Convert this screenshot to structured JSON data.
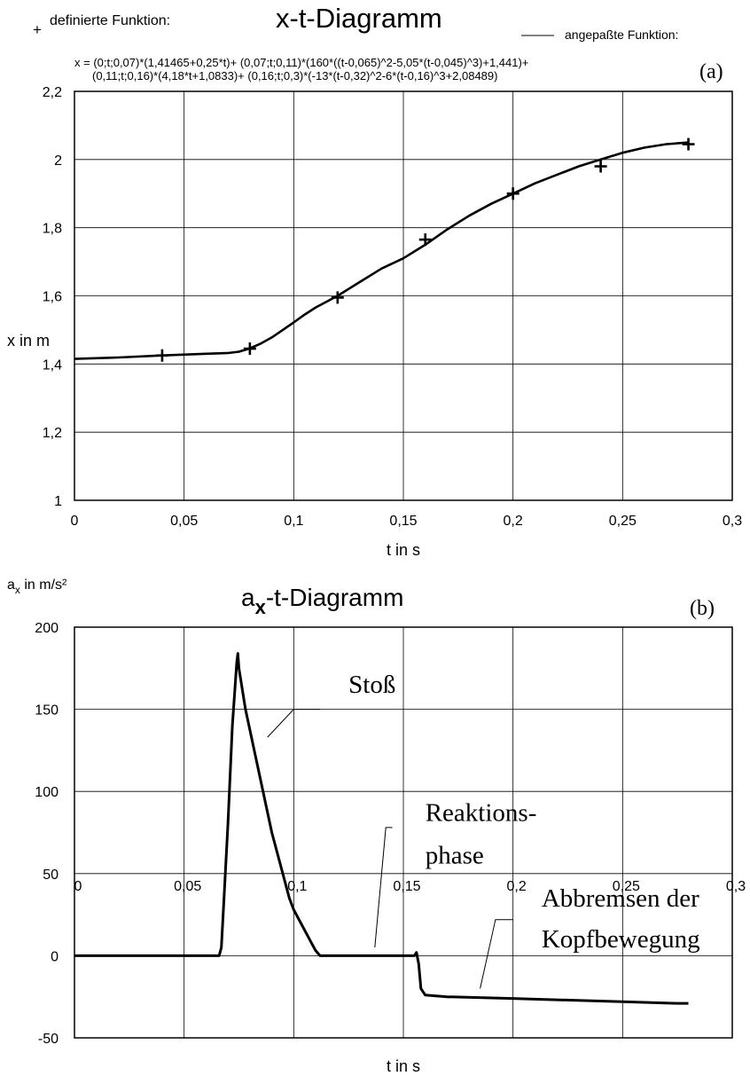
{
  "chart_data": [
    {
      "type": "line",
      "title": "x-t-Diagramm",
      "panel_label": "(a)",
      "legend": {
        "markers_label": "definierte Funktion:",
        "line_label": "angepaßte Funktion:",
        "marker_symbol": "+"
      },
      "formula_line1": "x = (0;t;0,07)*(1,41465+0,25*t)+ (0,07;t;0,11)*(160*((t-0,065)^2-5,05*(t-0,045)^3)+1,441)+",
      "formula_line2": "(0,11;t;0,16)*(4,18*t+1,0833)+ (0,16;t;0,3)*(-13*(t-0,32)^2-6*(t-0,16)^3+2,08489)",
      "xlabel": "t in s",
      "ylabel": "x in m",
      "xlim": [
        0,
        0.3
      ],
      "ylim": [
        1,
        2.2
      ],
      "x_ticks": [
        0,
        0.05,
        0.1,
        0.15,
        0.2,
        0.25,
        0.3
      ],
      "x_tick_labels": [
        "0",
        "0,05",
        "0,1",
        "0,15",
        "0,2",
        "0,25",
        "0,3"
      ],
      "y_ticks": [
        1,
        1.2,
        1.4,
        1.6,
        1.8,
        2,
        2.2
      ],
      "y_tick_labels": [
        "1",
        "1,2",
        "1,4",
        "1,6",
        "1,8",
        "2",
        "2,2"
      ],
      "grid": true,
      "series": [
        {
          "kind": "markers",
          "x": [
            0.04,
            0.08,
            0.12,
            0.16,
            0.2,
            0.24,
            0.28
          ],
          "y": [
            1.425,
            1.445,
            1.595,
            1.765,
            1.9,
            1.98,
            2.045
          ]
        },
        {
          "kind": "line",
          "x": [
            0,
            0.02,
            0.04,
            0.06,
            0.07,
            0.075,
            0.08,
            0.085,
            0.09,
            0.095,
            0.1,
            0.105,
            0.11,
            0.12,
            0.13,
            0.14,
            0.15,
            0.16,
            0.17,
            0.18,
            0.19,
            0.2,
            0.21,
            0.22,
            0.23,
            0.24,
            0.25,
            0.26,
            0.27,
            0.28
          ],
          "y": [
            1.415,
            1.419,
            1.425,
            1.43,
            1.432,
            1.436,
            1.446,
            1.46,
            1.478,
            1.5,
            1.522,
            1.545,
            1.566,
            1.6,
            1.64,
            1.68,
            1.71,
            1.75,
            1.795,
            1.835,
            1.87,
            1.9,
            1.93,
            1.955,
            1.98,
            2.0,
            2.02,
            2.035,
            2.045,
            2.05
          ]
        }
      ]
    },
    {
      "type": "line",
      "title_main": "a",
      "title_sub": "x",
      "title_rest": "-t-Diagramm",
      "panel_label": "(b)",
      "xlabel": "t in s",
      "ylabel_main": "a",
      "ylabel_sub": "x",
      "ylabel_rest": " in m/s²",
      "xlim": [
        0,
        0.3
      ],
      "ylim": [
        -50,
        200
      ],
      "x_ticks": [
        0,
        0.05,
        0.1,
        0.15,
        0.2,
        0.25,
        0.3
      ],
      "x_tick_labels": [
        "0",
        "0,05",
        "0,1",
        "0,15",
        "0,2",
        "0,25",
        "0,3"
      ],
      "y_ticks": [
        -50,
        0,
        50,
        100,
        150,
        200
      ],
      "y_tick_labels": [
        "-50",
        "0",
        "50",
        "100",
        "150",
        "200"
      ],
      "grid": true,
      "annotations": [
        {
          "text": "Stoß",
          "x": 0.125,
          "y": 160,
          "leader_from": [
            0.088,
            133
          ],
          "leader_to": [
            0.1,
            150
          ],
          "leader_end": [
            0.112,
            150
          ]
        },
        {
          "text": "Reaktions-",
          "x": 0.16,
          "y": 82,
          "leader_from": [
            0.137,
            5
          ],
          "leader_to": [
            0.142,
            78
          ],
          "leader_end": [
            0.145,
            78
          ]
        },
        {
          "text": "phase",
          "x": 0.16,
          "y": 56
        },
        {
          "text": "Abbremsen der",
          "x": 0.213,
          "y": 30,
          "leader_from": [
            0.185,
            -20
          ],
          "leader_to": [
            0.192,
            22
          ],
          "leader_end": [
            0.2,
            22
          ]
        },
        {
          "text": "Kopfbewegung",
          "x": 0.213,
          "y": 5
        }
      ],
      "series": [
        {
          "kind": "line",
          "x": [
            0,
            0.066,
            0.067,
            0.068,
            0.07,
            0.072,
            0.074,
            0.0745,
            0.075,
            0.078,
            0.082,
            0.086,
            0.09,
            0.094,
            0.098,
            0.1,
            0.104,
            0.108,
            0.11,
            0.112,
            0.114,
            0.12,
            0.13,
            0.14,
            0.15,
            0.155,
            0.156,
            0.157,
            0.158,
            0.16,
            0.17,
            0.2,
            0.25,
            0.275,
            0.28
          ],
          "y": [
            0,
            0,
            5,
            30,
            80,
            140,
            178,
            184,
            175,
            150,
            125,
            100,
            75,
            55,
            35,
            28,
            18,
            8,
            3,
            0,
            0,
            0,
            0,
            0,
            0,
            0,
            2,
            -5,
            -20,
            -24,
            -25,
            -26,
            -28,
            -29,
            -29
          ]
        }
      ]
    }
  ]
}
